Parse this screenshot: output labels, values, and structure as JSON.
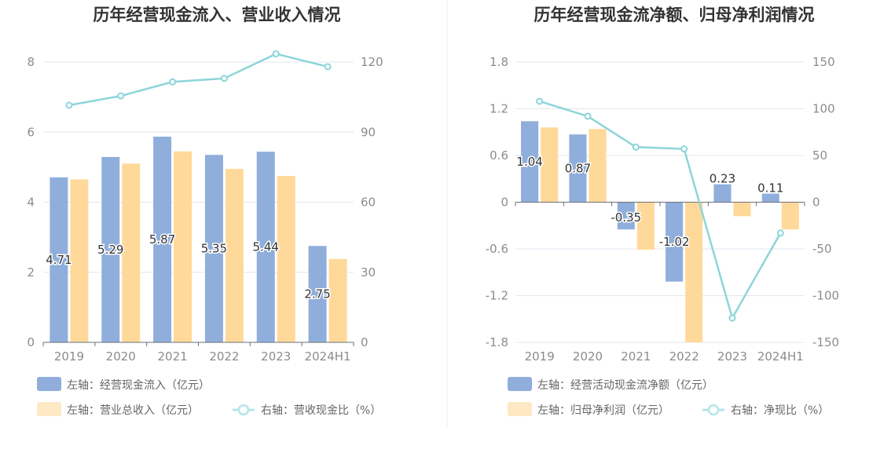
{
  "chart_data": [
    {
      "type": "bar",
      "title": "历年经营现金流入、营业收入情况",
      "categories": [
        "2019",
        "2020",
        "2021",
        "2022",
        "2023",
        "2024H1"
      ],
      "left_axis": {
        "min": 0,
        "max": 8,
        "ticks": [
          0,
          2,
          4,
          6,
          8
        ],
        "tick_labels": [
          "0",
          "2",
          "4",
          "6",
          "8"
        ]
      },
      "right_axis": {
        "min": 0,
        "max": 120,
        "ticks": [
          0,
          30,
          60,
          90,
          120
        ],
        "tick_labels": [
          "0",
          "30",
          "60",
          "90",
          "120"
        ]
      },
      "series": [
        {
          "name": "左轴：经营现金流入（亿元）",
          "kind": "bar",
          "axis": "left",
          "color": "#8FAEDB",
          "values": [
            4.71,
            5.29,
            5.87,
            5.35,
            5.44,
            2.75
          ],
          "labels": [
            "4.71",
            "5.29",
            "5.87",
            "5.35",
            "5.44",
            "2.75"
          ]
        },
        {
          "name": "左轴：营业总收入（亿元）",
          "kind": "bar",
          "axis": "left",
          "color": "#FFD99A",
          "values": [
            4.65,
            5.1,
            5.45,
            4.95,
            4.75,
            2.38
          ]
        },
        {
          "name": "右轴：营收现金比（%）",
          "kind": "line",
          "axis": "right",
          "color": "#8DD5DA",
          "values": [
            101.5,
            105.5,
            111.5,
            113.0,
            123.5,
            118.0
          ]
        }
      ],
      "grid": true,
      "legend_position": "bottom"
    },
    {
      "type": "bar",
      "title": "历年经营现金流净额、归母净利润情况",
      "categories": [
        "2019",
        "2020",
        "2021",
        "2022",
        "2023",
        "2024H1"
      ],
      "left_axis": {
        "min": -1.8,
        "max": 1.8,
        "ticks": [
          -1.8,
          -1.2,
          -0.6,
          0,
          0.6,
          1.2,
          1.8
        ],
        "tick_labels": [
          "-1.8",
          "-1.2",
          "-0.6",
          "0",
          "0.6",
          "1.2",
          "1.8"
        ]
      },
      "right_axis": {
        "min": -150,
        "max": 150,
        "ticks": [
          -150,
          -100,
          -50,
          0,
          50,
          100,
          150
        ],
        "tick_labels": [
          "-150",
          "-100",
          "-50",
          "0",
          "50",
          "100",
          "150"
        ]
      },
      "series": [
        {
          "name": "左轴：经营活动现金流净额（亿元）",
          "kind": "bar",
          "axis": "left",
          "color": "#8FAEDB",
          "values": [
            1.04,
            0.87,
            -0.35,
            -1.02,
            0.23,
            0.11
          ],
          "labels": [
            "1.04",
            "0.87",
            "-0.35",
            "-1.02",
            "0.23",
            "0.11"
          ]
        },
        {
          "name": "左轴：归母净利润（亿元）",
          "kind": "bar",
          "axis": "left",
          "color": "#FFD99A",
          "values": [
            0.96,
            0.94,
            -0.61,
            -1.8,
            -0.18,
            -0.35
          ]
        },
        {
          "name": "右轴：净现比（%）",
          "kind": "line",
          "axis": "right",
          "color": "#8DD5DA",
          "values": [
            108,
            92,
            59,
            57,
            -124,
            -33
          ]
        }
      ],
      "grid": true,
      "legend_position": "bottom"
    }
  ]
}
